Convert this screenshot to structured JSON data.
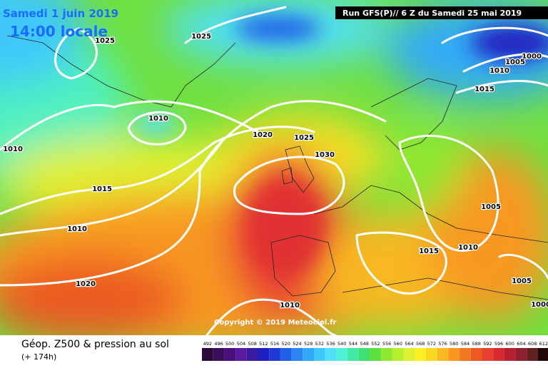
{
  "header": {
    "date": "Samedi 1 juin 2019",
    "time": "14:00 locale",
    "run": "Run GFS(P)// 6 Z du Samedi 25 mai 2019"
  },
  "copyright": "Copyright © 2019 Meteociel.fr",
  "footer": {
    "title": "Géop. Z500 & pression au sol",
    "lead": "(+ 174h)"
  },
  "isobar_labels": [
    "1025",
    "1025",
    "1010",
    "1010",
    "1020",
    "1025",
    "1030",
    "1015",
    "1010",
    "1020",
    "1010",
    "1015",
    "1010",
    "1005",
    "1005",
    "1000",
    "1005",
    "1010",
    "1015",
    "1000"
  ],
  "scale": {
    "labels": [
      492,
      496,
      500,
      504,
      508,
      512,
      516,
      520,
      524,
      528,
      532,
      536,
      540,
      544,
      548,
      552,
      556,
      560,
      564,
      568,
      572,
      576,
      580,
      584,
      588,
      592,
      596,
      600,
      604,
      608,
      612
    ],
    "colors": [
      "#2a0a3a",
      "#3c0f5a",
      "#4b0f7a",
      "#5a1a9a",
      "#3a1aa0",
      "#2020c0",
      "#1f3ad6",
      "#2060e6",
      "#2a88f0",
      "#30aaf6",
      "#40c8fa",
      "#50e0f8",
      "#50f0d8",
      "#40eaa0",
      "#40e070",
      "#60e040",
      "#90e830",
      "#b8ee30",
      "#e0f030",
      "#f8f020",
      "#f8d820",
      "#f8b820",
      "#f89820",
      "#f07820",
      "#ec5a22",
      "#e84030",
      "#d82a30",
      "#b82030",
      "#902030",
      "#602020",
      "#200808"
    ]
  }
}
